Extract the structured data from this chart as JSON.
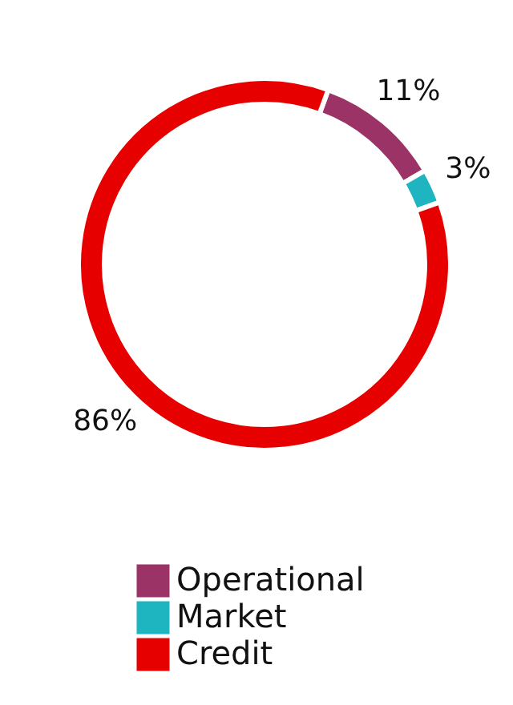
{
  "chart_data": {
    "type": "donut",
    "categories": [
      "Operational",
      "Market",
      "Credit"
    ],
    "values": [
      11,
      3,
      86
    ],
    "colors": [
      "#9b3366",
      "#1fb5c0",
      "#e60000"
    ],
    "value_labels": [
      "11%",
      "3%",
      "86%"
    ],
    "legend": "bottom"
  }
}
